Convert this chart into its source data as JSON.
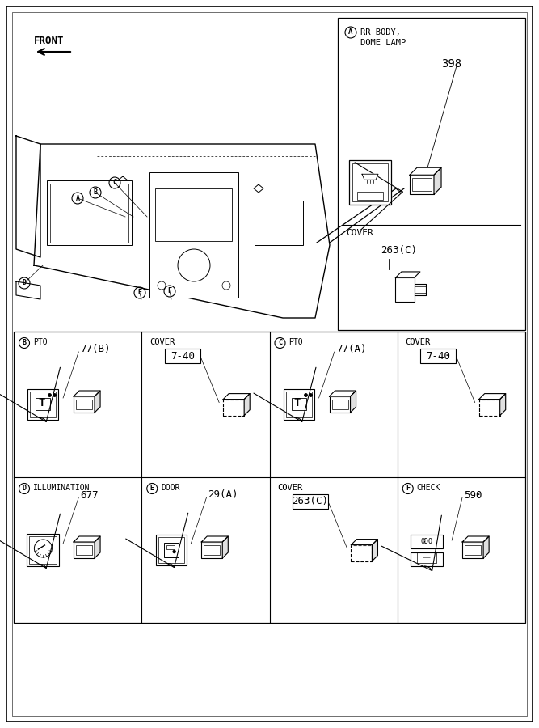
{
  "bg_color": "#ffffff",
  "line_color": "#000000",
  "front_label": "FRONT",
  "rr_body_line1": "RR BODY,",
  "rr_body_line2": "DOME LAMP",
  "rr_number": "398",
  "rr_cover_text": "COVER",
  "rr_cover_number": "263(C)",
  "sections_row0": [
    {
      "label": "B",
      "title": "PTO",
      "number": "77(B)",
      "icon": "pto",
      "is_cover": false
    },
    {
      "label": "",
      "title": "COVER",
      "number": "7-40",
      "icon": "cover",
      "is_cover": true
    },
    {
      "label": "C",
      "title": "PTO",
      "number": "77(A)",
      "icon": "pto",
      "is_cover": false
    },
    {
      "label": "",
      "title": "COVER",
      "number": "7-40",
      "icon": "cover",
      "is_cover": true
    }
  ],
  "sections_row1": [
    {
      "label": "D",
      "title": "ILLUMINATION",
      "number": "677",
      "icon": "illumination",
      "is_cover": false
    },
    {
      "label": "E",
      "title": "DOOR",
      "number": "29(A)",
      "icon": "door",
      "is_cover": false
    },
    {
      "label": "",
      "title": "COVER",
      "number": "263(C)",
      "icon": "cover",
      "is_cover": true
    },
    {
      "label": "F",
      "title": "CHECK",
      "number": "590",
      "icon": "check",
      "is_cover": false
    }
  ]
}
